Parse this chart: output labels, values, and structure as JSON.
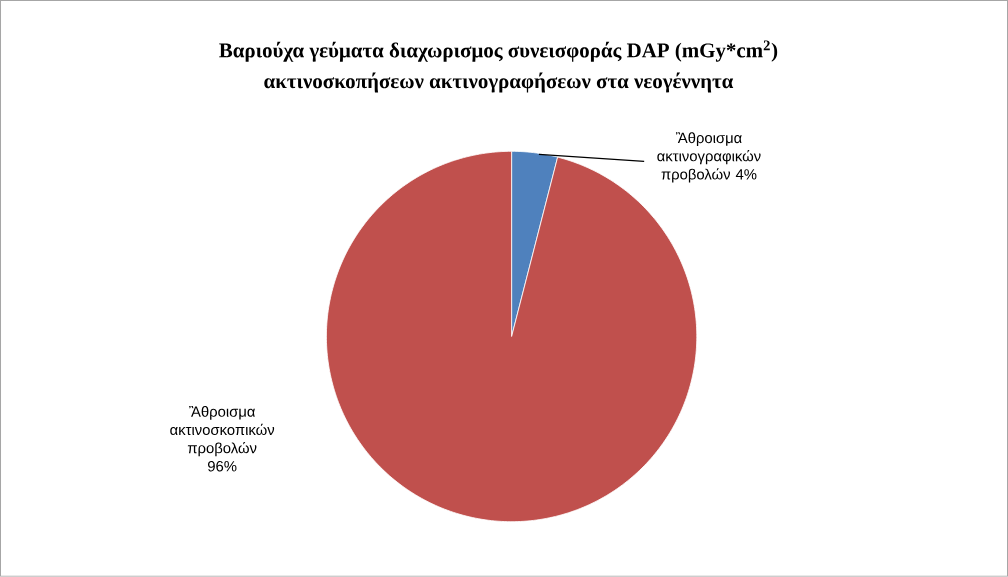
{
  "chart_data": {
    "type": "pie",
    "title": "Βαριούχα γεύματα διαχωρισμος συνεισφοράς DAP (mGy*cm$^{2}$)",
    "subtitle": "ακτινοσκοπήσεων ακτινογραφήσεων στα νεογέννητα",
    "categories": [
      "Ἂθροισμα ακτινογραφικών προβολών",
      "Ἂθροισμα ακτινοσκοπικών προβολών"
    ],
    "values": [
      4,
      96
    ],
    "colors": [
      "#4f81bd",
      "#c0504d"
    ],
    "value_labels": [
      "4%",
      "96%"
    ]
  }
}
